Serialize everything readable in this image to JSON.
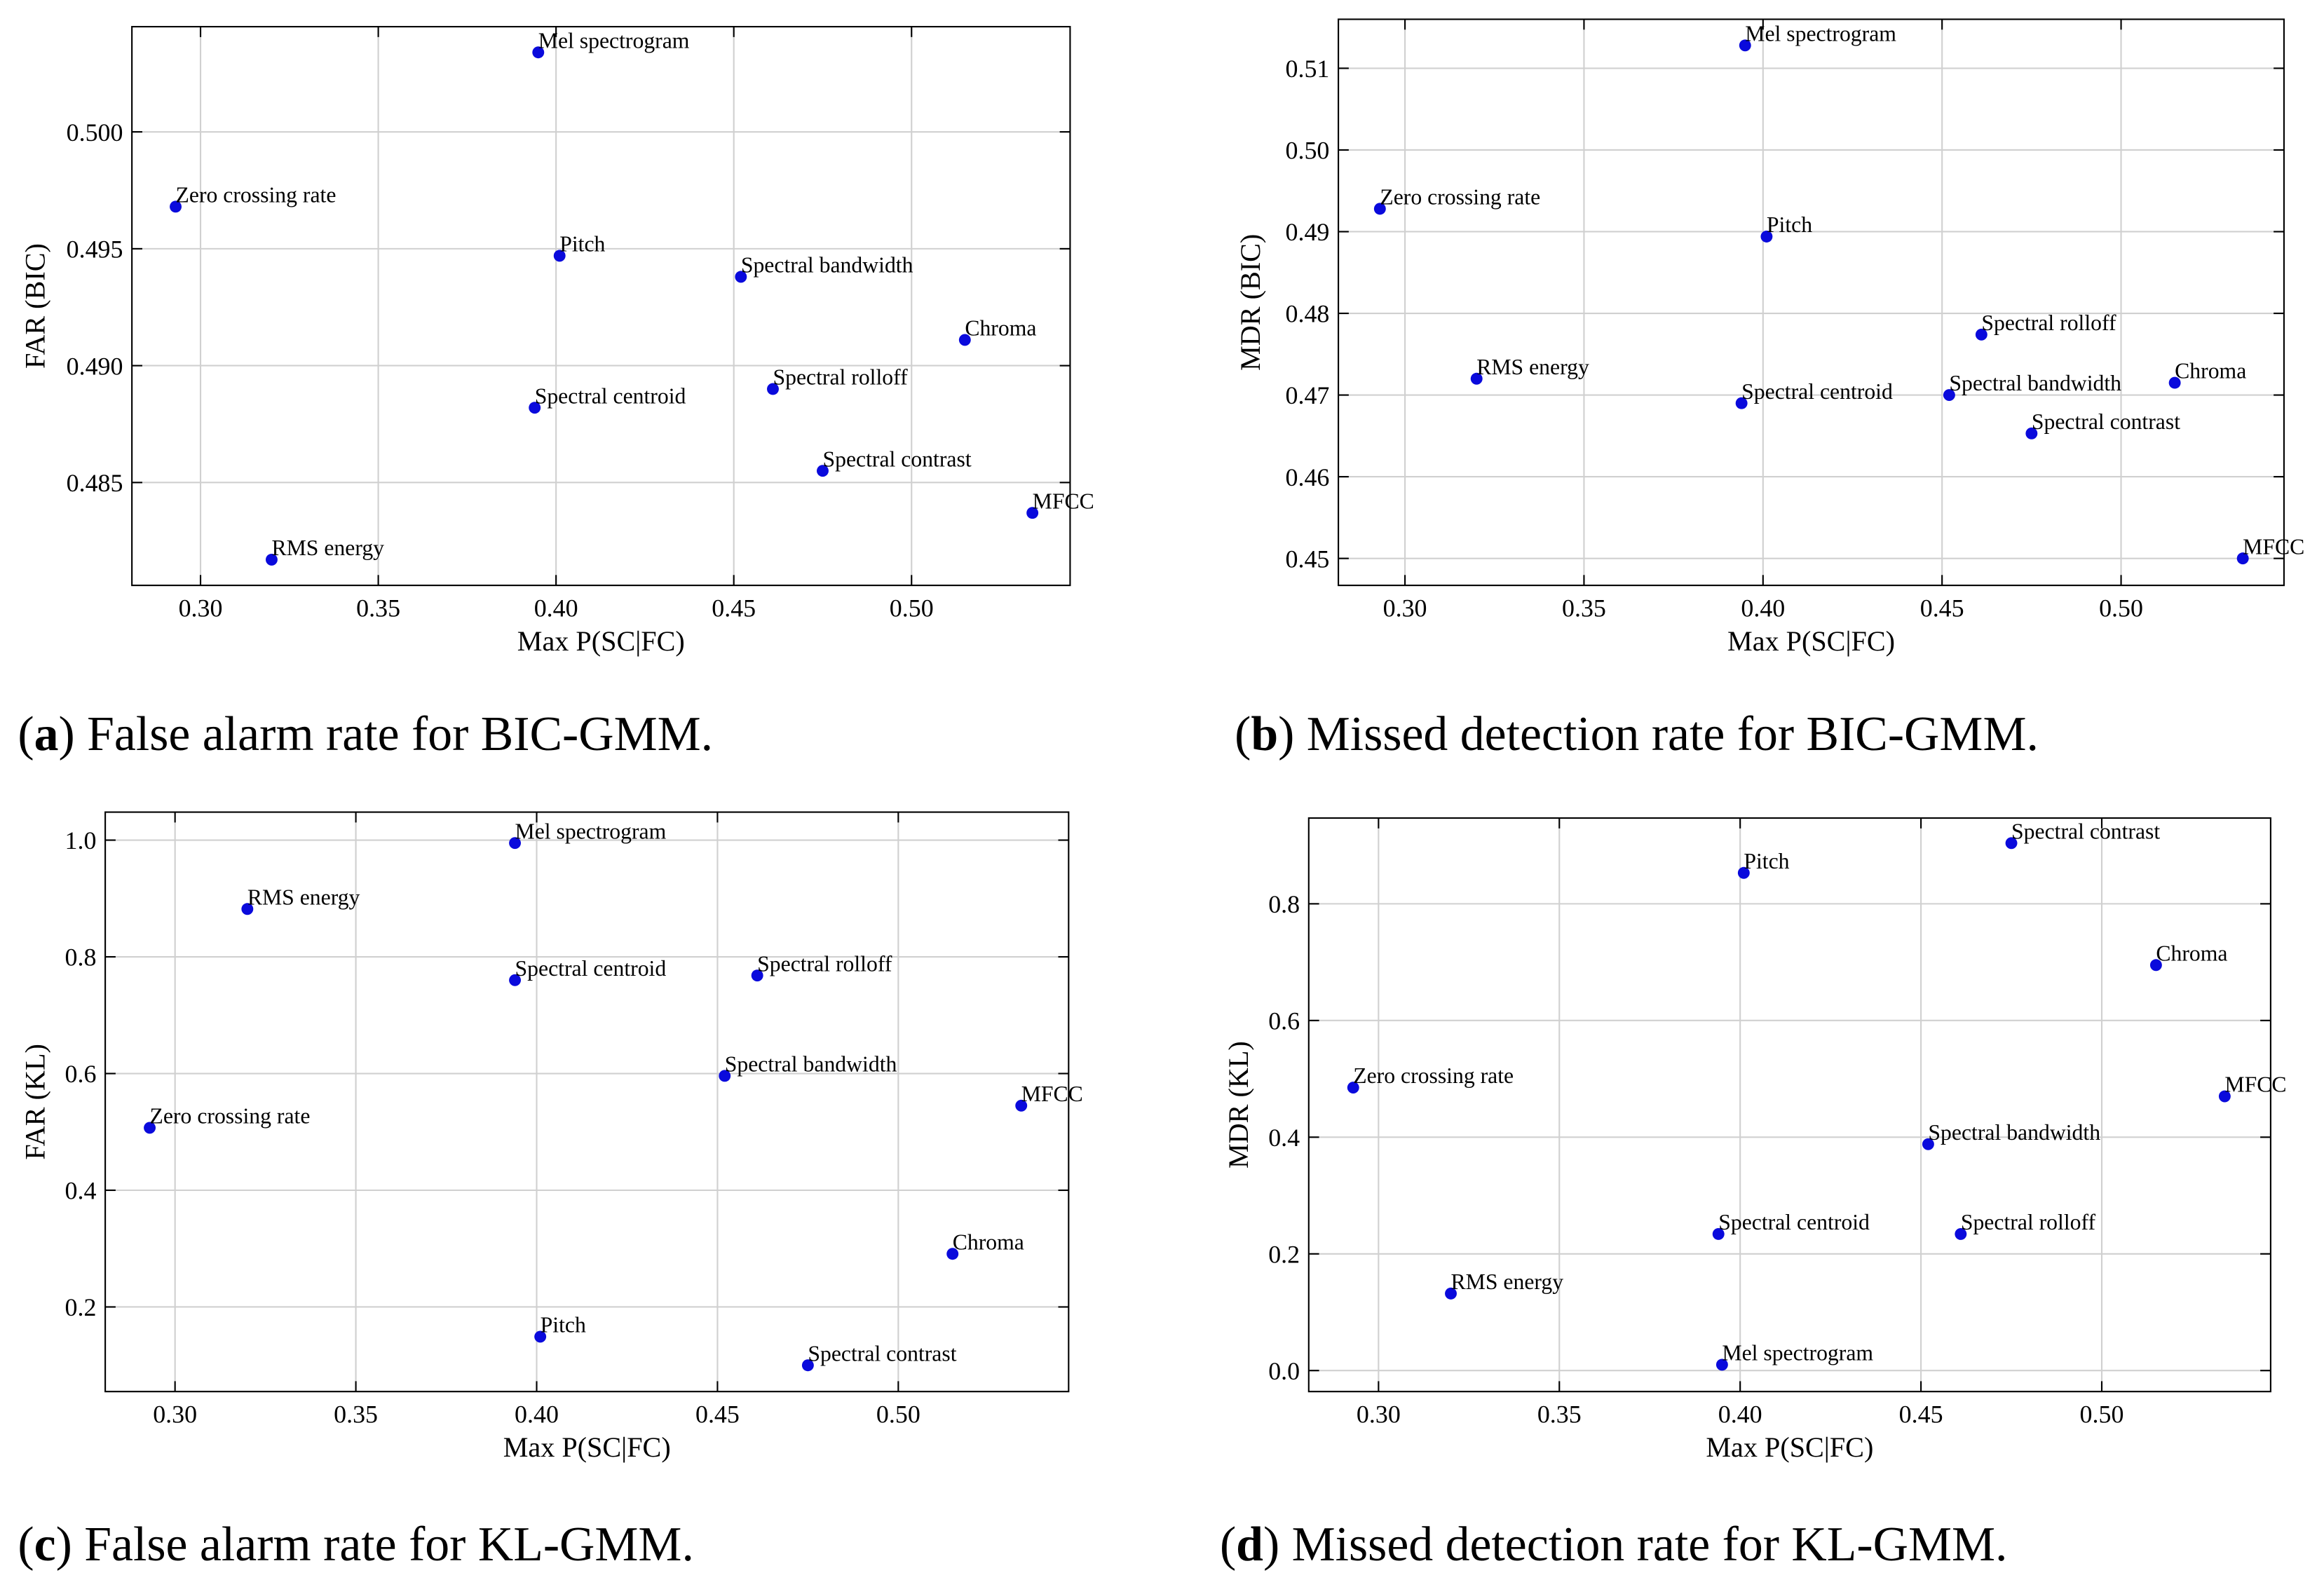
{
  "chart_data": [
    {
      "type": "scatter",
      "color": "#0a0adc",
      "grid": true,
      "xlabel": "Max P(SC|FC)",
      "ylabel": "FAR (BIC)",
      "caption": [
        "(",
        "a",
        ") False alarm rate for BIC-GMM."
      ],
      "categories": [
        "Mel spectrogram",
        "Zero crossing rate",
        "Pitch",
        "Spectral bandwidth",
        "Chroma",
        "Spectral rolloff",
        "Spectral centroid",
        "Spectral contrast",
        "MFCC",
        "RMS energy"
      ],
      "x": [
        0.395,
        0.293,
        0.401,
        0.452,
        0.515,
        0.461,
        0.394,
        0.475,
        0.534,
        0.32
      ],
      "values": [
        0.5034,
        0.4968,
        0.4947,
        0.4938,
        0.4911,
        0.489,
        0.4882,
        0.4855,
        0.4837,
        0.4817
      ],
      "xlim": [
        0.2807,
        0.5446
      ],
      "ylim": [
        0.4806,
        0.5045
      ],
      "xticks": [
        {
          "value": 0.3,
          "label": "0.30"
        },
        0.35,
        {
          "value": 0.4,
          "label": "0.40"
        },
        0.45,
        {
          "value": 0.5,
          "label": "0.50"
        }
      ],
      "yticks": [
        0.485,
        {
          "value": 0.49,
          "label": "0.490"
        },
        0.495,
        {
          "value": 0.5,
          "label": "0.500"
        }
      ]
    },
    {
      "type": "scatter",
      "color": "#0a0adc",
      "grid": true,
      "xlabel": "Max P(SC|FC)",
      "ylabel": "MDR (BIC)",
      "caption": [
        "(",
        "b",
        ") Missed detection rate for BIC-GMM."
      ],
      "categories": [
        "Mel spectrogram",
        "Zero crossing rate",
        "Pitch",
        "Spectral rolloff",
        "Chroma",
        "RMS energy",
        "Spectral bandwidth",
        "Spectral centroid",
        "Spectral contrast",
        "MFCC"
      ],
      "x": [
        0.395,
        0.293,
        0.401,
        0.461,
        0.515,
        0.32,
        0.452,
        0.394,
        0.475,
        0.534
      ],
      "values": [
        0.5128,
        0.4928,
        0.4894,
        0.4774,
        0.4715,
        0.472,
        0.47,
        0.469,
        0.4653,
        0.45
      ],
      "xlim": [
        0.2814,
        0.5455
      ],
      "ylim": [
        0.4467,
        0.516
      ],
      "xticks": [
        {
          "value": 0.3,
          "label": "0.30"
        },
        0.35,
        {
          "value": 0.4,
          "label": "0.40"
        },
        0.45,
        {
          "value": 0.5,
          "label": "0.50"
        }
      ],
      "yticks": [
        0.45,
        0.46,
        0.47,
        0.48,
        0.49,
        {
          "value": 0.5,
          "label": "0.50"
        },
        0.51
      ]
    },
    {
      "type": "scatter",
      "color": "#0a0adc",
      "grid": true,
      "xlabel": "Max P(SC|FC)",
      "ylabel": "FAR (KL)",
      "caption": [
        "(",
        "c",
        ") False alarm rate for KL-GMM."
      ],
      "categories": [
        "Mel spectrogram",
        "RMS energy",
        "Spectral centroid",
        "Spectral rolloff",
        "Spectral bandwidth",
        "Zero crossing rate",
        "MFCC",
        "Chroma",
        "Pitch",
        "Spectral contrast"
      ],
      "x": [
        0.394,
        0.32,
        0.394,
        0.461,
        0.452,
        0.293,
        0.534,
        0.515,
        0.401,
        0.475
      ],
      "values": [
        0.995,
        0.882,
        0.76,
        0.768,
        0.596,
        0.507,
        0.545,
        0.291,
        0.149,
        0.1
      ],
      "xlim": [
        0.2807,
        0.5471
      ],
      "ylim": [
        0.055,
        1.048
      ],
      "xticks": [
        {
          "value": 0.3,
          "label": "0.30"
        },
        0.35,
        {
          "value": 0.4,
          "label": "0.40"
        },
        0.45,
        {
          "value": 0.5,
          "label": "0.50"
        }
      ],
      "yticks": [
        0.2,
        0.4,
        0.6,
        0.8,
        {
          "value": 1.0,
          "label": "1.0"
        }
      ]
    },
    {
      "type": "scatter",
      "color": "#0a0adc",
      "grid": true,
      "xlabel": "Max P(SC|FC)",
      "ylabel": "MDR (KL)",
      "caption": [
        "(",
        "d",
        ") Missed detection rate for KL-GMM."
      ],
      "categories": [
        "Spectral contrast",
        "Pitch",
        "Chroma",
        "Zero crossing rate",
        "MFCC",
        "Spectral bandwidth",
        "Spectral centroid",
        "Spectral rolloff",
        "RMS energy",
        "Mel spectrogram"
      ],
      "x": [
        0.475,
        0.401,
        0.515,
        0.293,
        0.534,
        0.452,
        0.394,
        0.461,
        0.32,
        0.395
      ],
      "values": [
        0.904,
        0.853,
        0.695,
        0.485,
        0.47,
        0.388,
        0.234,
        0.234,
        0.132,
        0.01
      ],
      "xlim": [
        0.2807,
        0.5467
      ],
      "ylim": [
        -0.036,
        0.947
      ],
      "xticks": [
        {
          "value": 0.3,
          "label": "0.30"
        },
        0.35,
        {
          "value": 0.4,
          "label": "0.40"
        },
        0.45,
        {
          "value": 0.5,
          "label": "0.50"
        }
      ],
      "yticks": [
        {
          "value": 0.0,
          "label": "0.0"
        },
        0.2,
        0.4,
        0.6,
        0.8
      ]
    }
  ]
}
